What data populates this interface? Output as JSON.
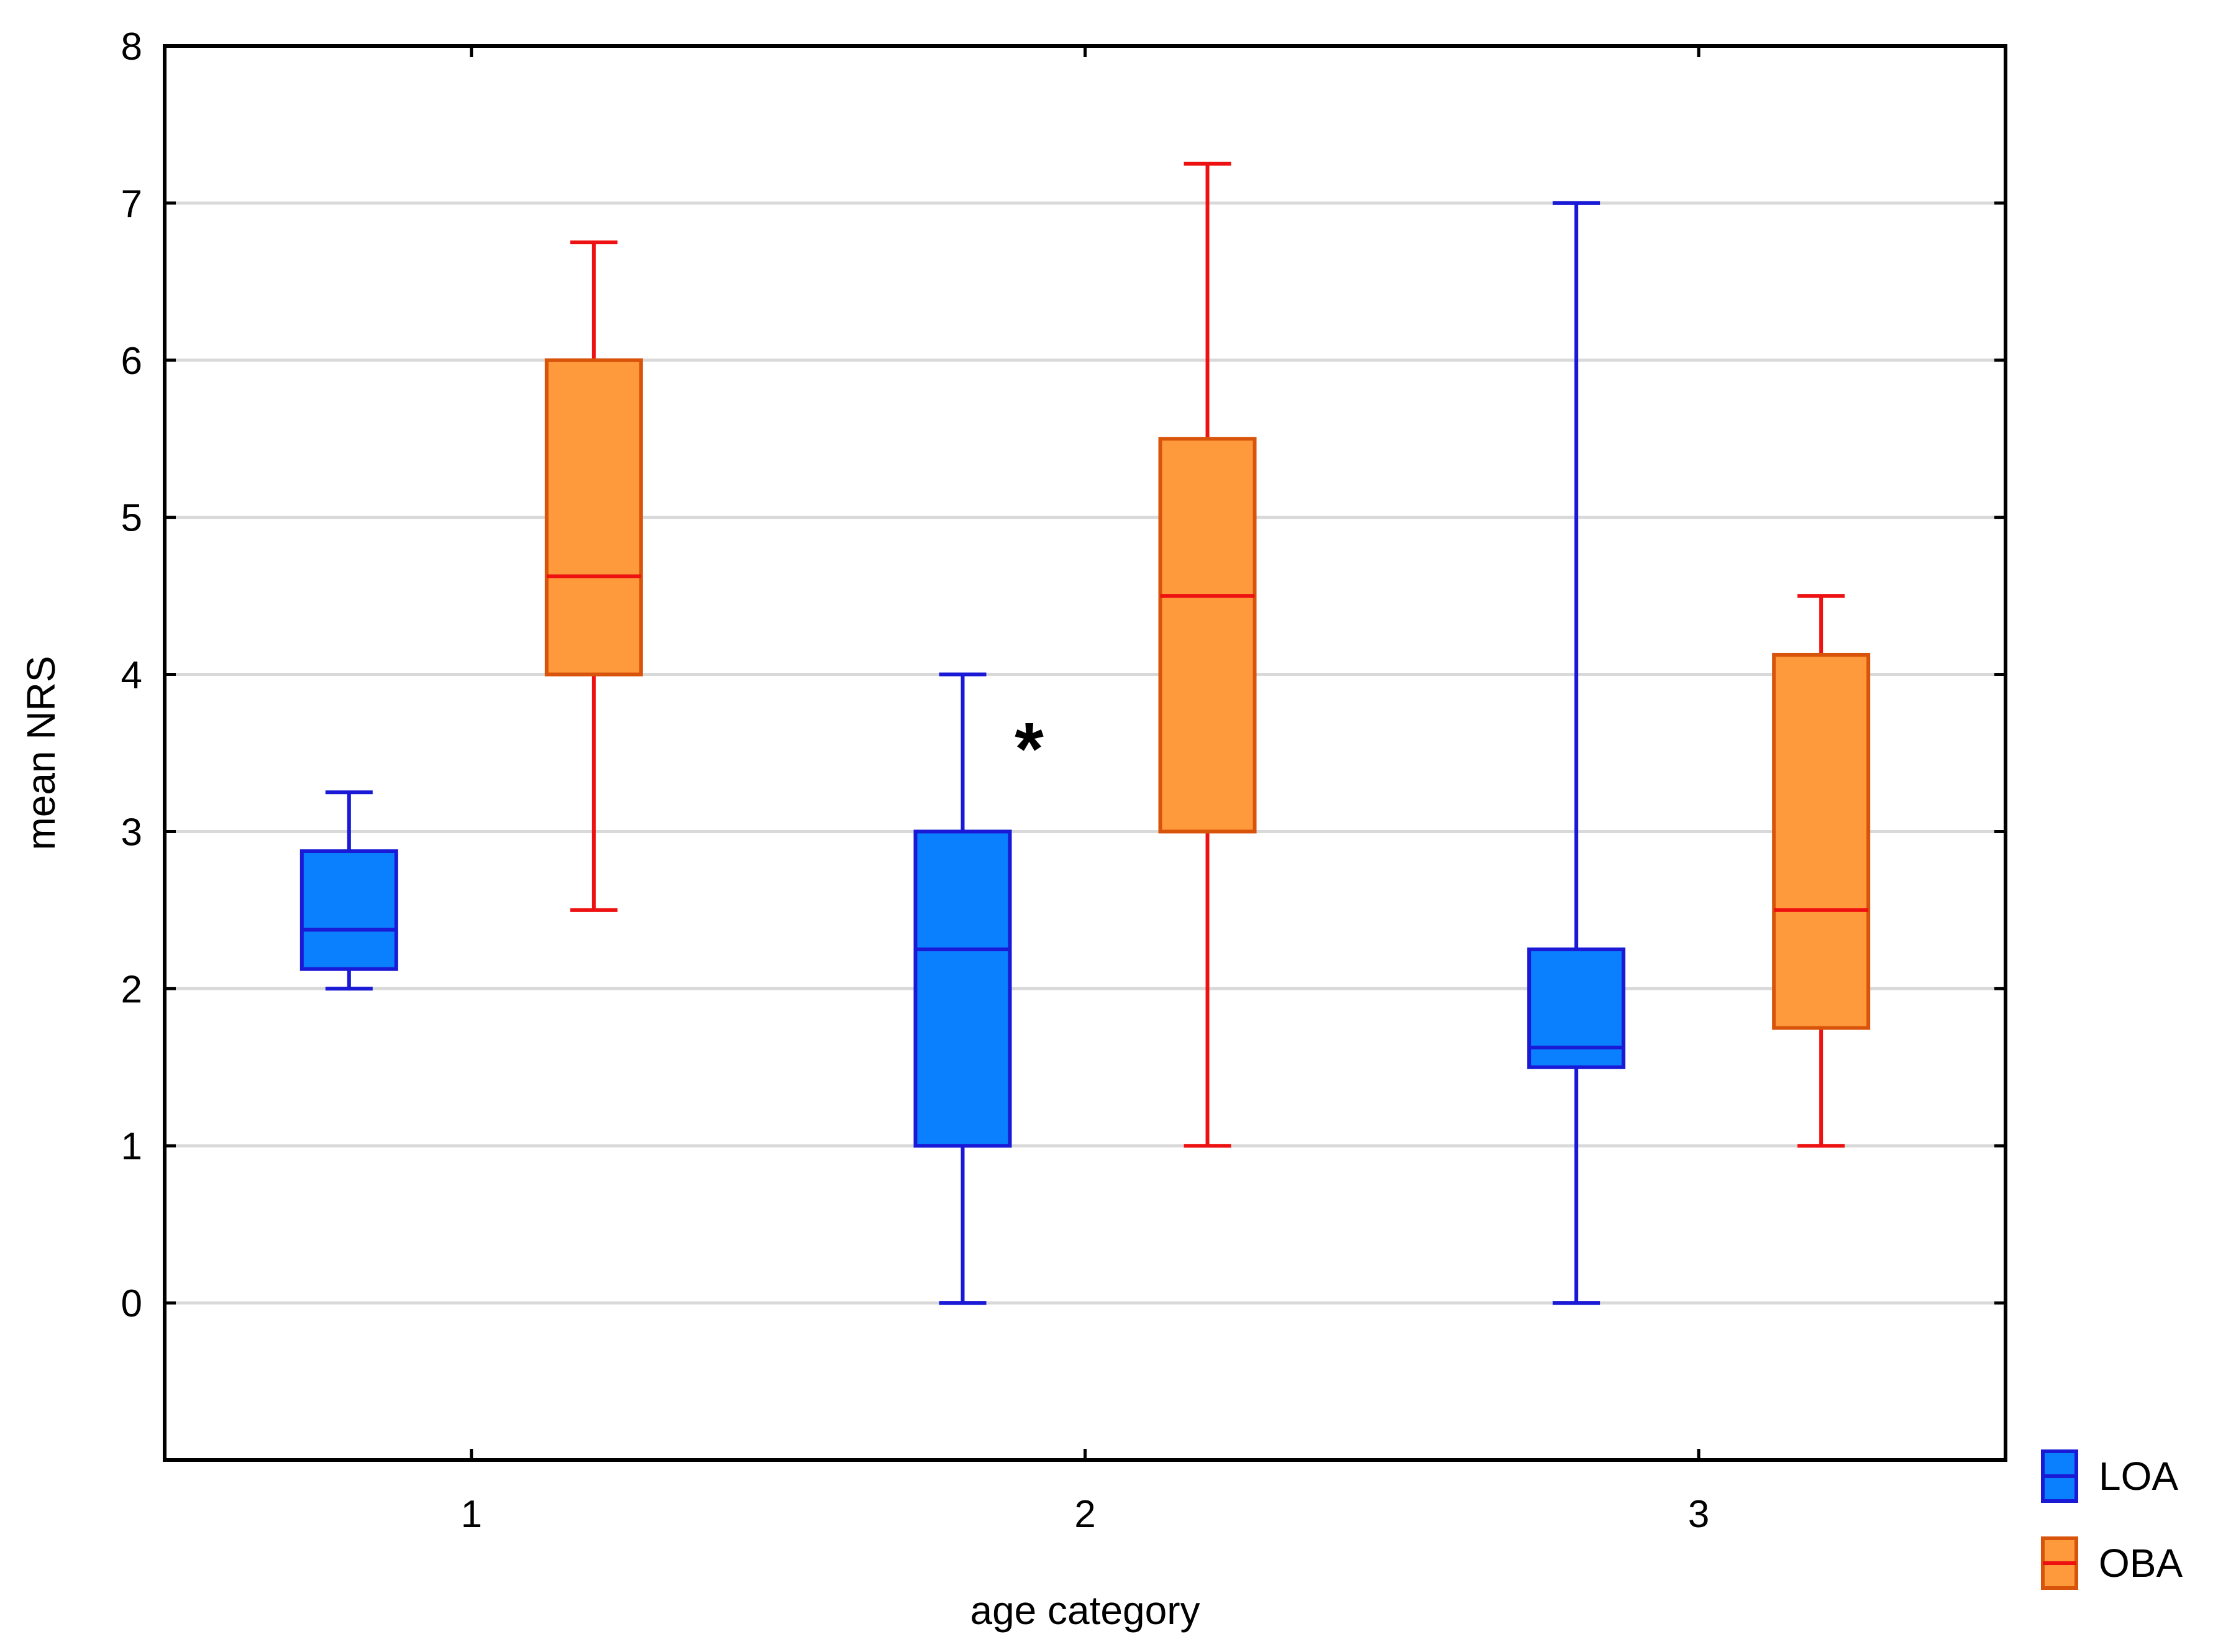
{
  "chart_data": {
    "type": "box",
    "title": "",
    "xlabel": "age category",
    "ylabel": "mean NRS",
    "ylim": [
      -1,
      8
    ],
    "yticks": [
      0,
      1,
      2,
      3,
      4,
      5,
      6,
      7,
      8
    ],
    "categories": [
      "1",
      "2",
      "3"
    ],
    "grid": true,
    "legend_position": "bottom-right-outside",
    "series": [
      {
        "name": "LOA",
        "fill_color": "#0a80ff",
        "line_color": "#1a1ad6",
        "boxes": [
          {
            "category": "1",
            "whisker_low": 2.0,
            "q1": 2.125,
            "median": 2.375,
            "q3": 2.875,
            "whisker_high": 3.25
          },
          {
            "category": "2",
            "whisker_low": 0.0,
            "q1": 1.0,
            "median": 2.25,
            "q3": 3.0,
            "whisker_high": 4.0
          },
          {
            "category": "3",
            "whisker_low": 0.0,
            "q1": 1.5,
            "median": 1.625,
            "q3": 2.25,
            "whisker_high": 7.0
          }
        ]
      },
      {
        "name": "OBA",
        "fill_color": "#ff9a3c",
        "line_color": "#d9540b",
        "median_color": "#ee1111",
        "boxes": [
          {
            "category": "1",
            "whisker_low": 2.5,
            "q1": 4.0,
            "median": 4.625,
            "q3": 6.0,
            "whisker_high": 6.75
          },
          {
            "category": "2",
            "whisker_low": 1.0,
            "q1": 3.0,
            "median": 4.5,
            "q3": 5.5,
            "whisker_high": 7.25
          },
          {
            "category": "3",
            "whisker_low": 1.0,
            "q1": 1.75,
            "median": 2.5,
            "q3": 4.125,
            "whisker_high": 4.5
          }
        ]
      }
    ],
    "annotations": [
      {
        "text": "*",
        "category": "2",
        "y": 3.6
      }
    ]
  }
}
